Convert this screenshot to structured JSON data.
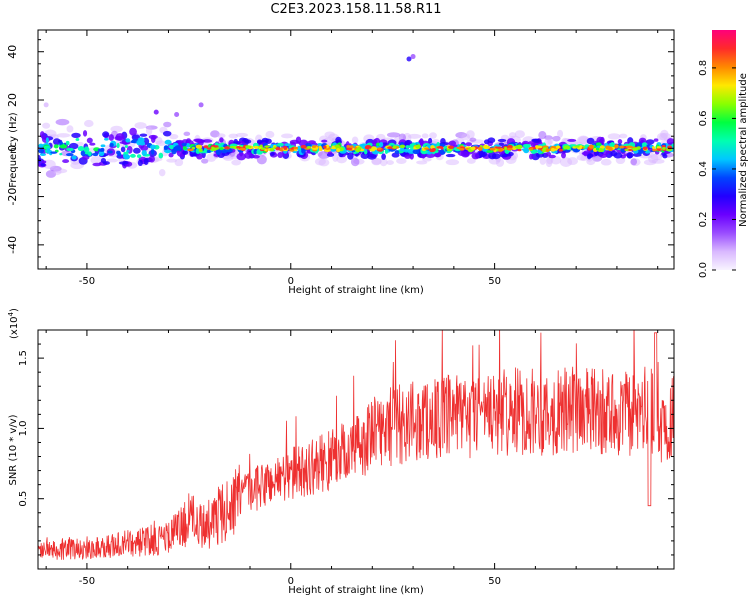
{
  "title": "C2E3.2023.158.11.58.R11",
  "colors": {
    "snr_line": "#ee3030",
    "colormap": [
      "#f8f4ff",
      "#d9b8ff",
      "#9a4dff",
      "#6a00ff",
      "#2200ff",
      "#0044ff",
      "#00c8ff",
      "#00ffb0",
      "#00ff40",
      "#8aff00",
      "#ffe800",
      "#ff8800",
      "#ff2a2a",
      "#ff007a"
    ]
  },
  "chart_data": [
    {
      "type": "heatmap",
      "xlabel": "Height of straight line (km)",
      "ylabel": "Frequency (Hz)",
      "xlim": [
        -62,
        94
      ],
      "ylim": [
        -50,
        49
      ],
      "xticks": [
        -50,
        0,
        50
      ],
      "yticks": [
        -40,
        -20,
        0,
        20,
        40
      ],
      "colorbar": {
        "label": "Normalized spectral amplitude",
        "range": [
          0.0,
          0.95
        ],
        "ticks": [
          "0.0",
          "0.2",
          "0.4",
          "0.6",
          "0.8"
        ]
      },
      "description": "Energy concentrated near 0 Hz across all heights; broad noisy band between -60 and -30 km; stray spots near 37 Hz around 29 km"
    },
    {
      "type": "line",
      "xlabel": "Height of straight line (km)",
      "ylabel": "SNR (10 * v/v)",
      "multiplier": "(x10",
      "multiplier_exp": "4",
      "xlim": [
        -62,
        94
      ],
      "ylim": [
        0,
        1.7
      ],
      "xticks": [
        -50,
        0,
        50
      ],
      "yticks": [
        "0.5",
        "1.0",
        "1.5"
      ],
      "series": [
        {
          "x": [
            -62,
            -55,
            -45,
            -35,
            -30,
            -25,
            -20,
            -15,
            -10,
            -5,
            0,
            5,
            10,
            15,
            20,
            25,
            30,
            35,
            40,
            45,
            50,
            55,
            60,
            65,
            70,
            75,
            80,
            85,
            88,
            90,
            94
          ],
          "y": [
            0.15,
            0.14,
            0.16,
            0.2,
            0.22,
            0.35,
            0.32,
            0.45,
            0.55,
            0.62,
            0.68,
            0.72,
            0.78,
            0.85,
            0.95,
            1.02,
            1.05,
            1.07,
            1.08,
            1.08,
            1.1,
            1.12,
            1.12,
            1.11,
            1.13,
            1.12,
            1.1,
            1.1,
            1.15,
            1.0,
            1.12
          ]
        }
      ]
    }
  ]
}
